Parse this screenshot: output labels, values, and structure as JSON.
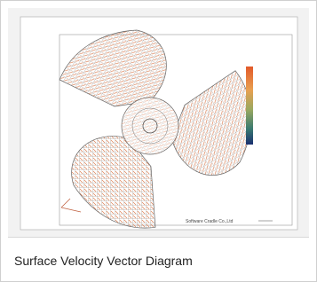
{
  "figure": {
    "credit": "Software Cradle Co.,Ltd"
  },
  "caption": "Surface Velocity Vector Diagram"
}
